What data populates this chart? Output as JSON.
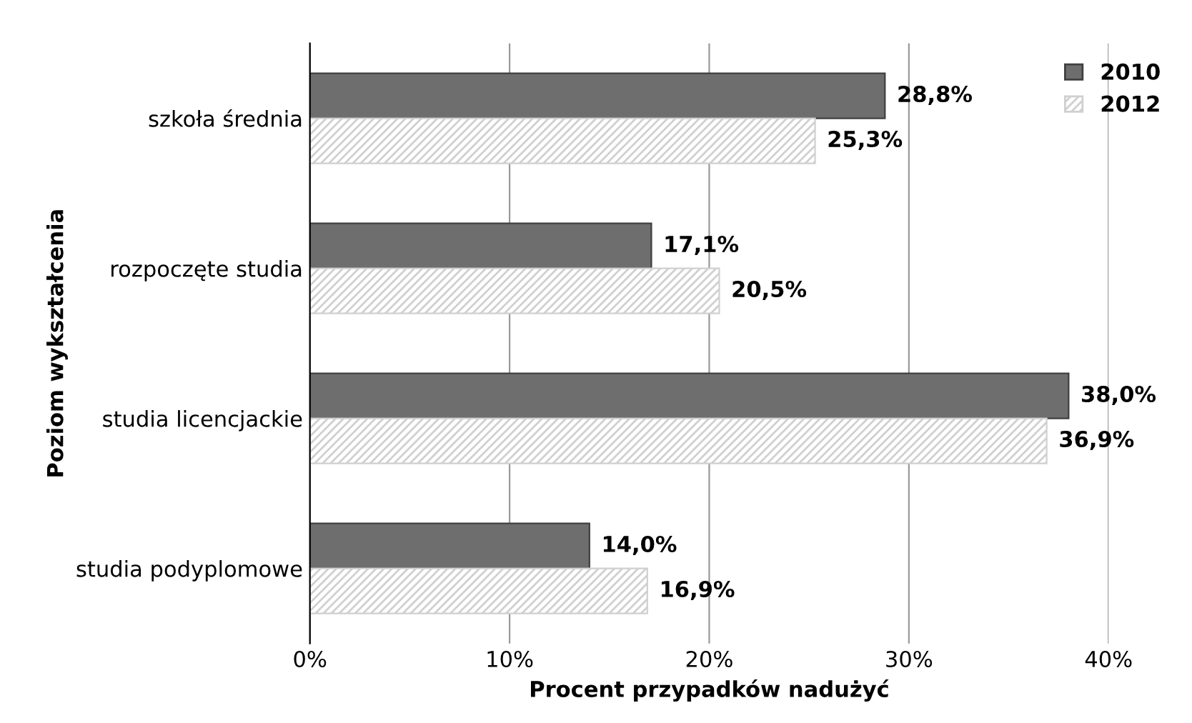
{
  "chart_data": {
    "type": "bar",
    "orientation": "horizontal",
    "xlabel": "Procent przypadków nadużyć",
    "ylabel": "Poziom wykształcenia",
    "categories": [
      "szkoła średnia",
      "rozpoczęte studia",
      "studia licencjackie",
      "studia podyplomowe"
    ],
    "series": [
      {
        "name": "2010",
        "color": "#6e6e6e",
        "values": [
          28.8,
          17.1,
          38.0,
          14.0
        ],
        "value_labels": [
          "28,8%",
          "17,1%",
          "38,0%",
          "14,0%"
        ]
      },
      {
        "name": "2012",
        "color": "#d0d0d0",
        "values": [
          25.3,
          20.5,
          36.9,
          16.9
        ],
        "value_labels": [
          "25,3%",
          "20,5%",
          "36,9%",
          "16,9%"
        ]
      }
    ],
    "xlim": [
      0,
      40
    ],
    "xticks": [
      {
        "value": 0,
        "label": "0%"
      },
      {
        "value": 10,
        "label": "10%"
      },
      {
        "value": 20,
        "label": "20%"
      },
      {
        "value": 30,
        "label": "30%"
      },
      {
        "value": 40,
        "label": "40%"
      }
    ],
    "grid": "x",
    "legend": "top right"
  }
}
